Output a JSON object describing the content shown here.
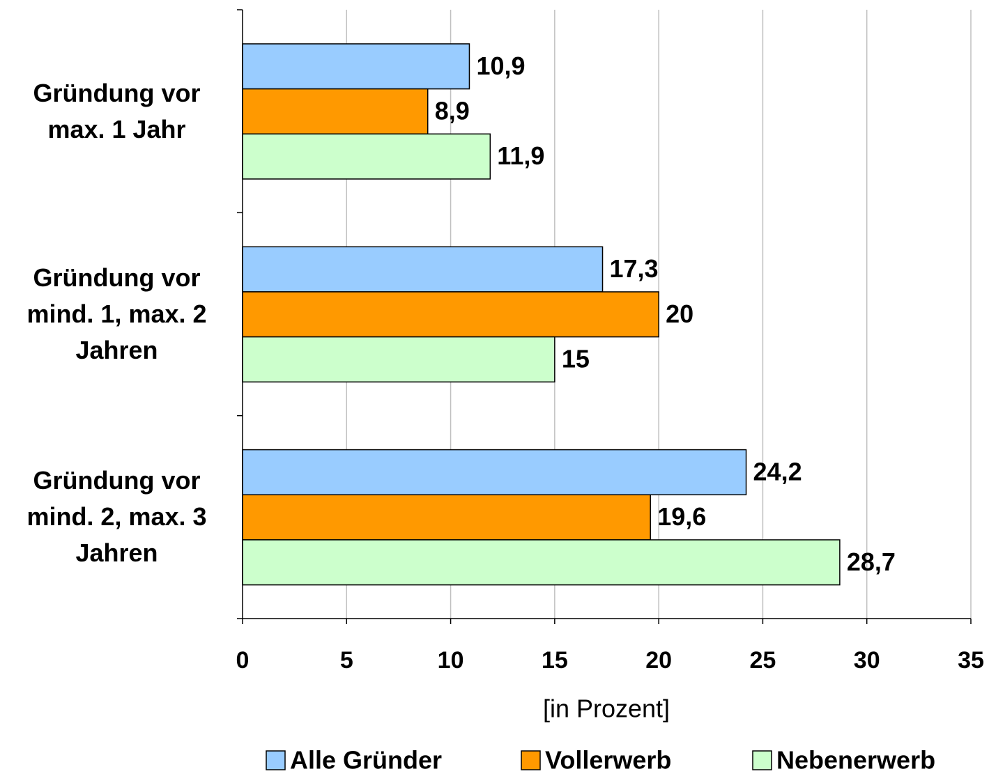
{
  "chart_data": {
    "type": "hbar",
    "categories": [
      "Gründung vor max. 1 Jahr",
      "Gründung vor mind. 1, max. 2 Jahren",
      "Gründung vor mind. 2, max. 3 Jahren"
    ],
    "series": [
      {
        "name": "Alle Gründer",
        "color": "#99ccff",
        "values": [
          10.9,
          17.3,
          24.2
        ],
        "value_labels": [
          "10,9",
          "17,3",
          "24,2"
        ]
      },
      {
        "name": "Vollerwerb",
        "color": "#ff9900",
        "values": [
          8.9,
          20,
          19.6
        ],
        "value_labels": [
          "8,9",
          "20",
          "19,6"
        ]
      },
      {
        "name": "Nebenerwerb",
        "color": "#ccffcc",
        "values": [
          11.9,
          15,
          28.7
        ],
        "value_labels": [
          "11,9",
          "15",
          "28,7"
        ]
      }
    ],
    "xlim": [
      0,
      35
    ],
    "xticks": [
      0,
      5,
      10,
      15,
      20,
      25,
      30,
      35
    ],
    "xlabel": "[in Prozent]",
    "grid": true,
    "legend": "bottom"
  }
}
